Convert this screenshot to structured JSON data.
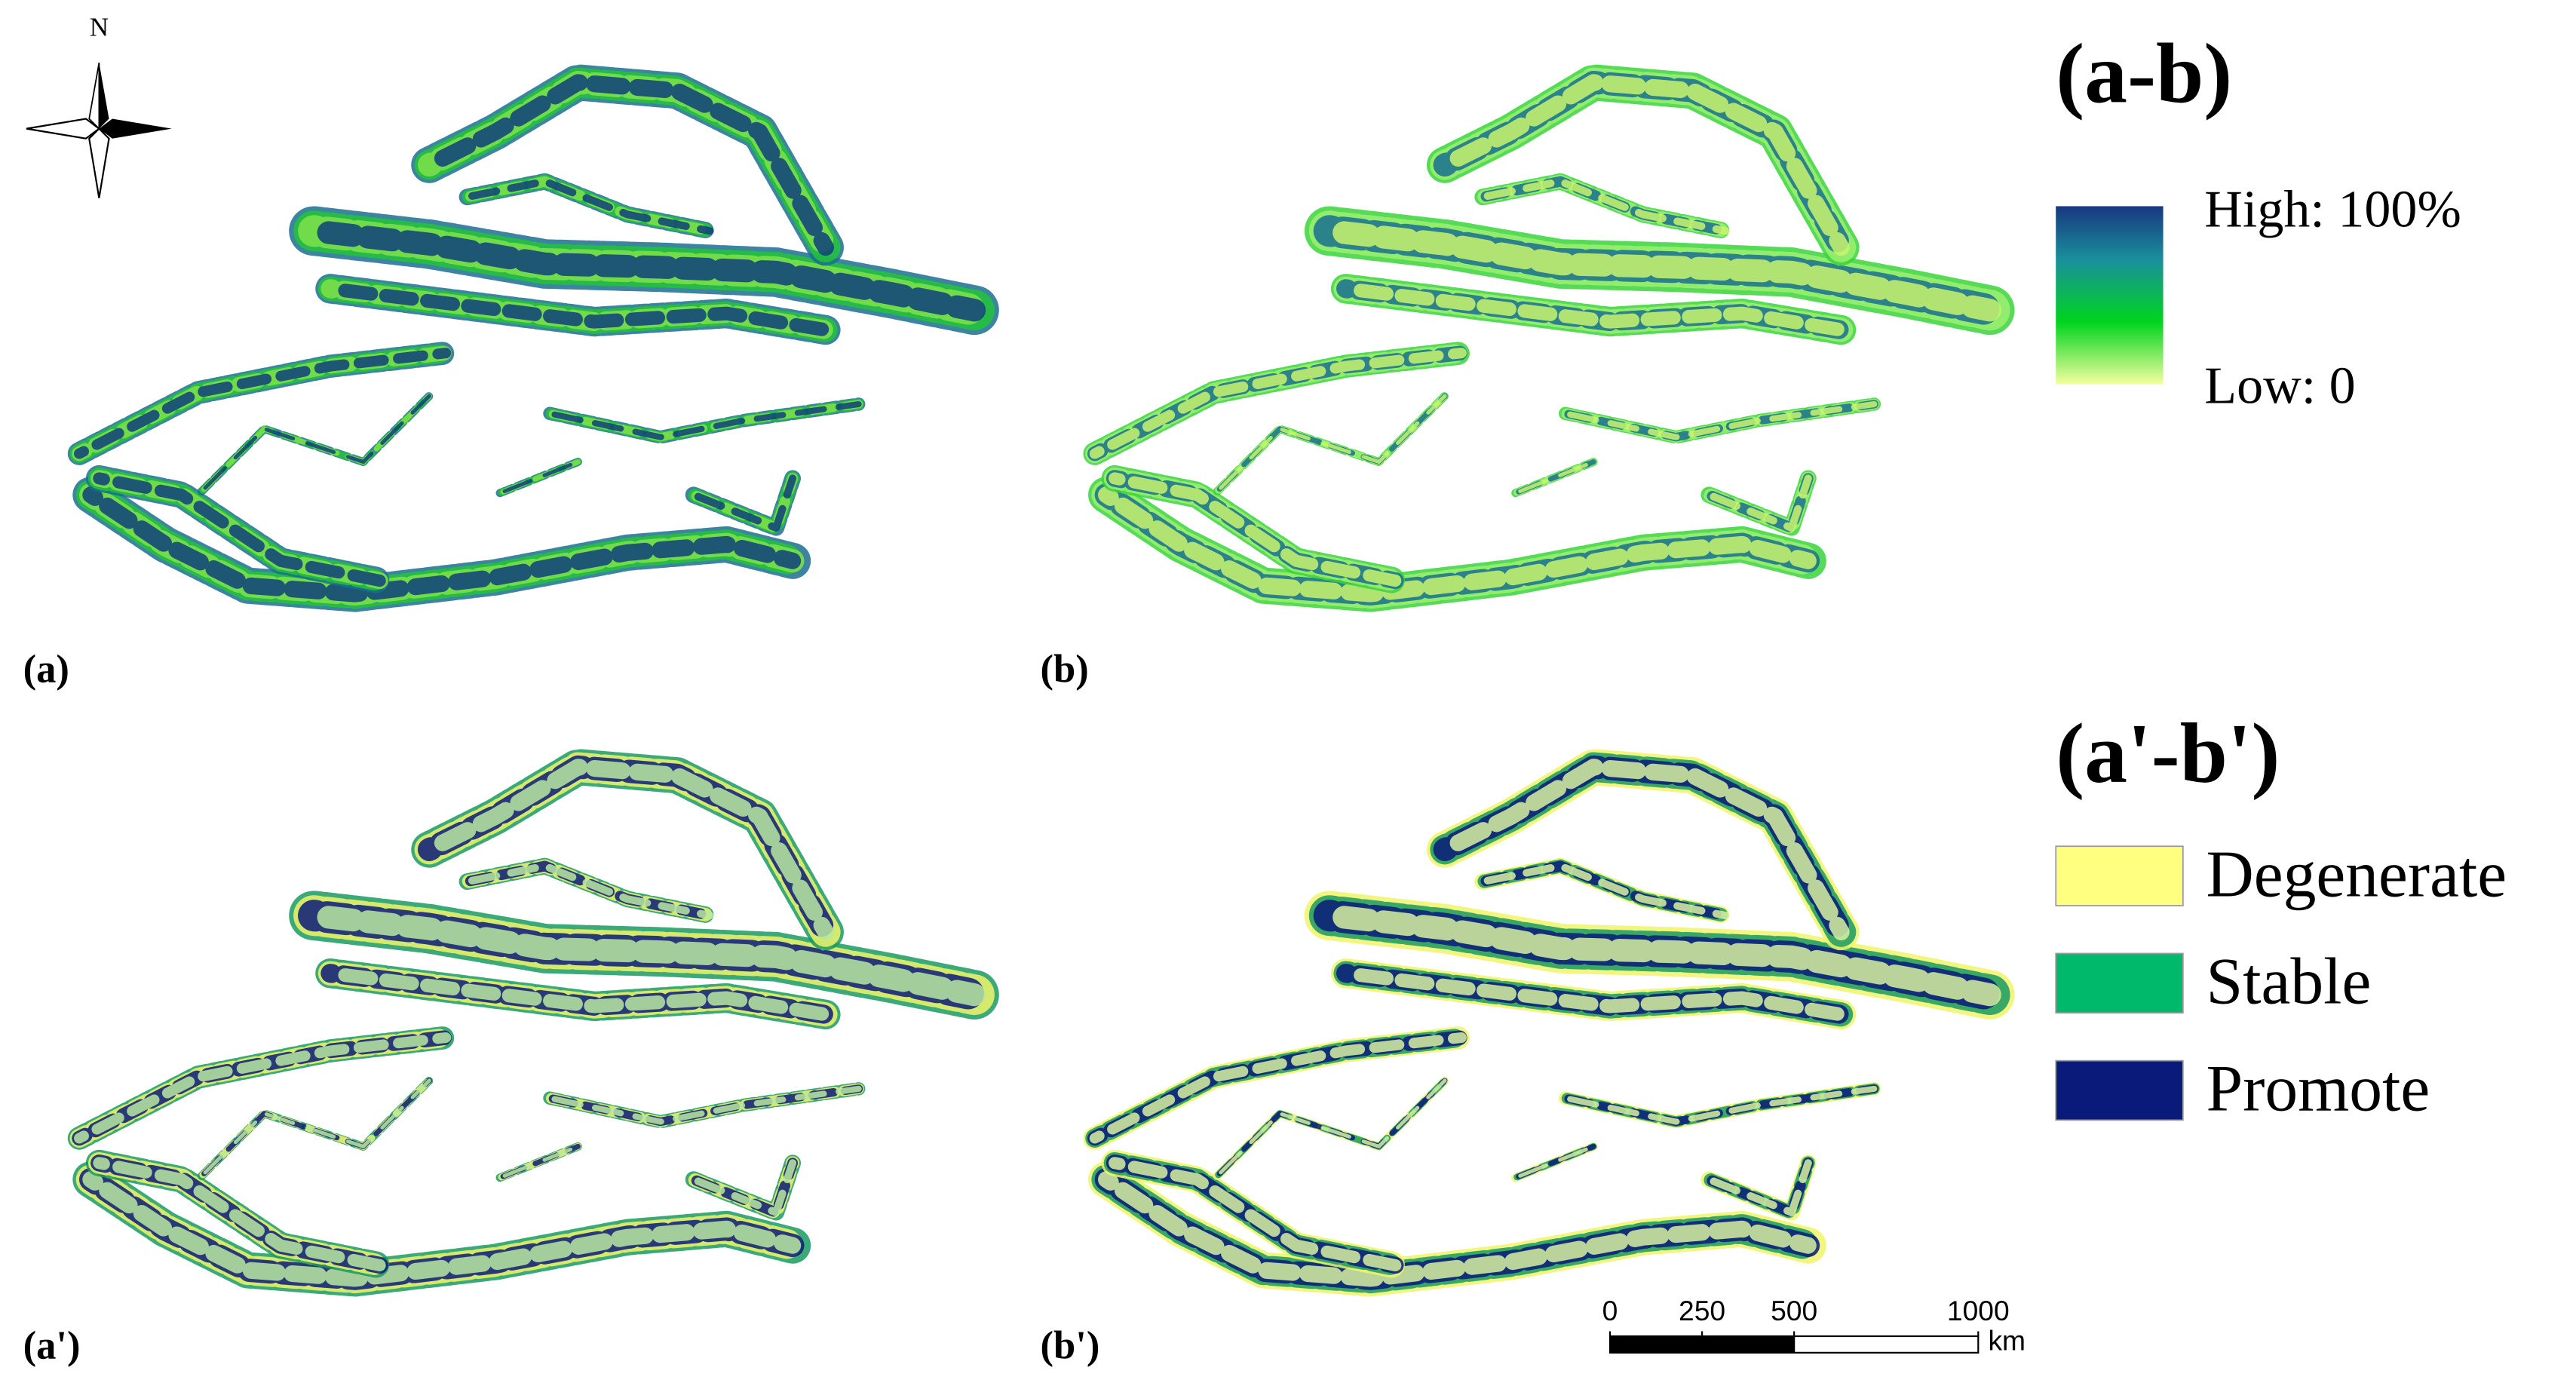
{
  "panels": [
    {
      "label": "(a)"
    },
    {
      "label": "(b)"
    },
    {
      "label": "(a')"
    },
    {
      "label": "(b')"
    }
  ],
  "compass": {
    "label": "N"
  },
  "legend_continuous": {
    "title": "(a-b)",
    "high": "High: 100%",
    "low": "Low: 0"
  },
  "legend_categorical": {
    "title": "(a'-b')",
    "items": [
      {
        "label": "Degenerate",
        "color": "#ffff80"
      },
      {
        "label": "Stable",
        "color": "#00b96b"
      },
      {
        "label": "Promote",
        "color": "#0a1a7a"
      }
    ]
  },
  "scale_bar": {
    "ticks": [
      0,
      250,
      500,
      1000
    ],
    "unit": "km"
  }
}
